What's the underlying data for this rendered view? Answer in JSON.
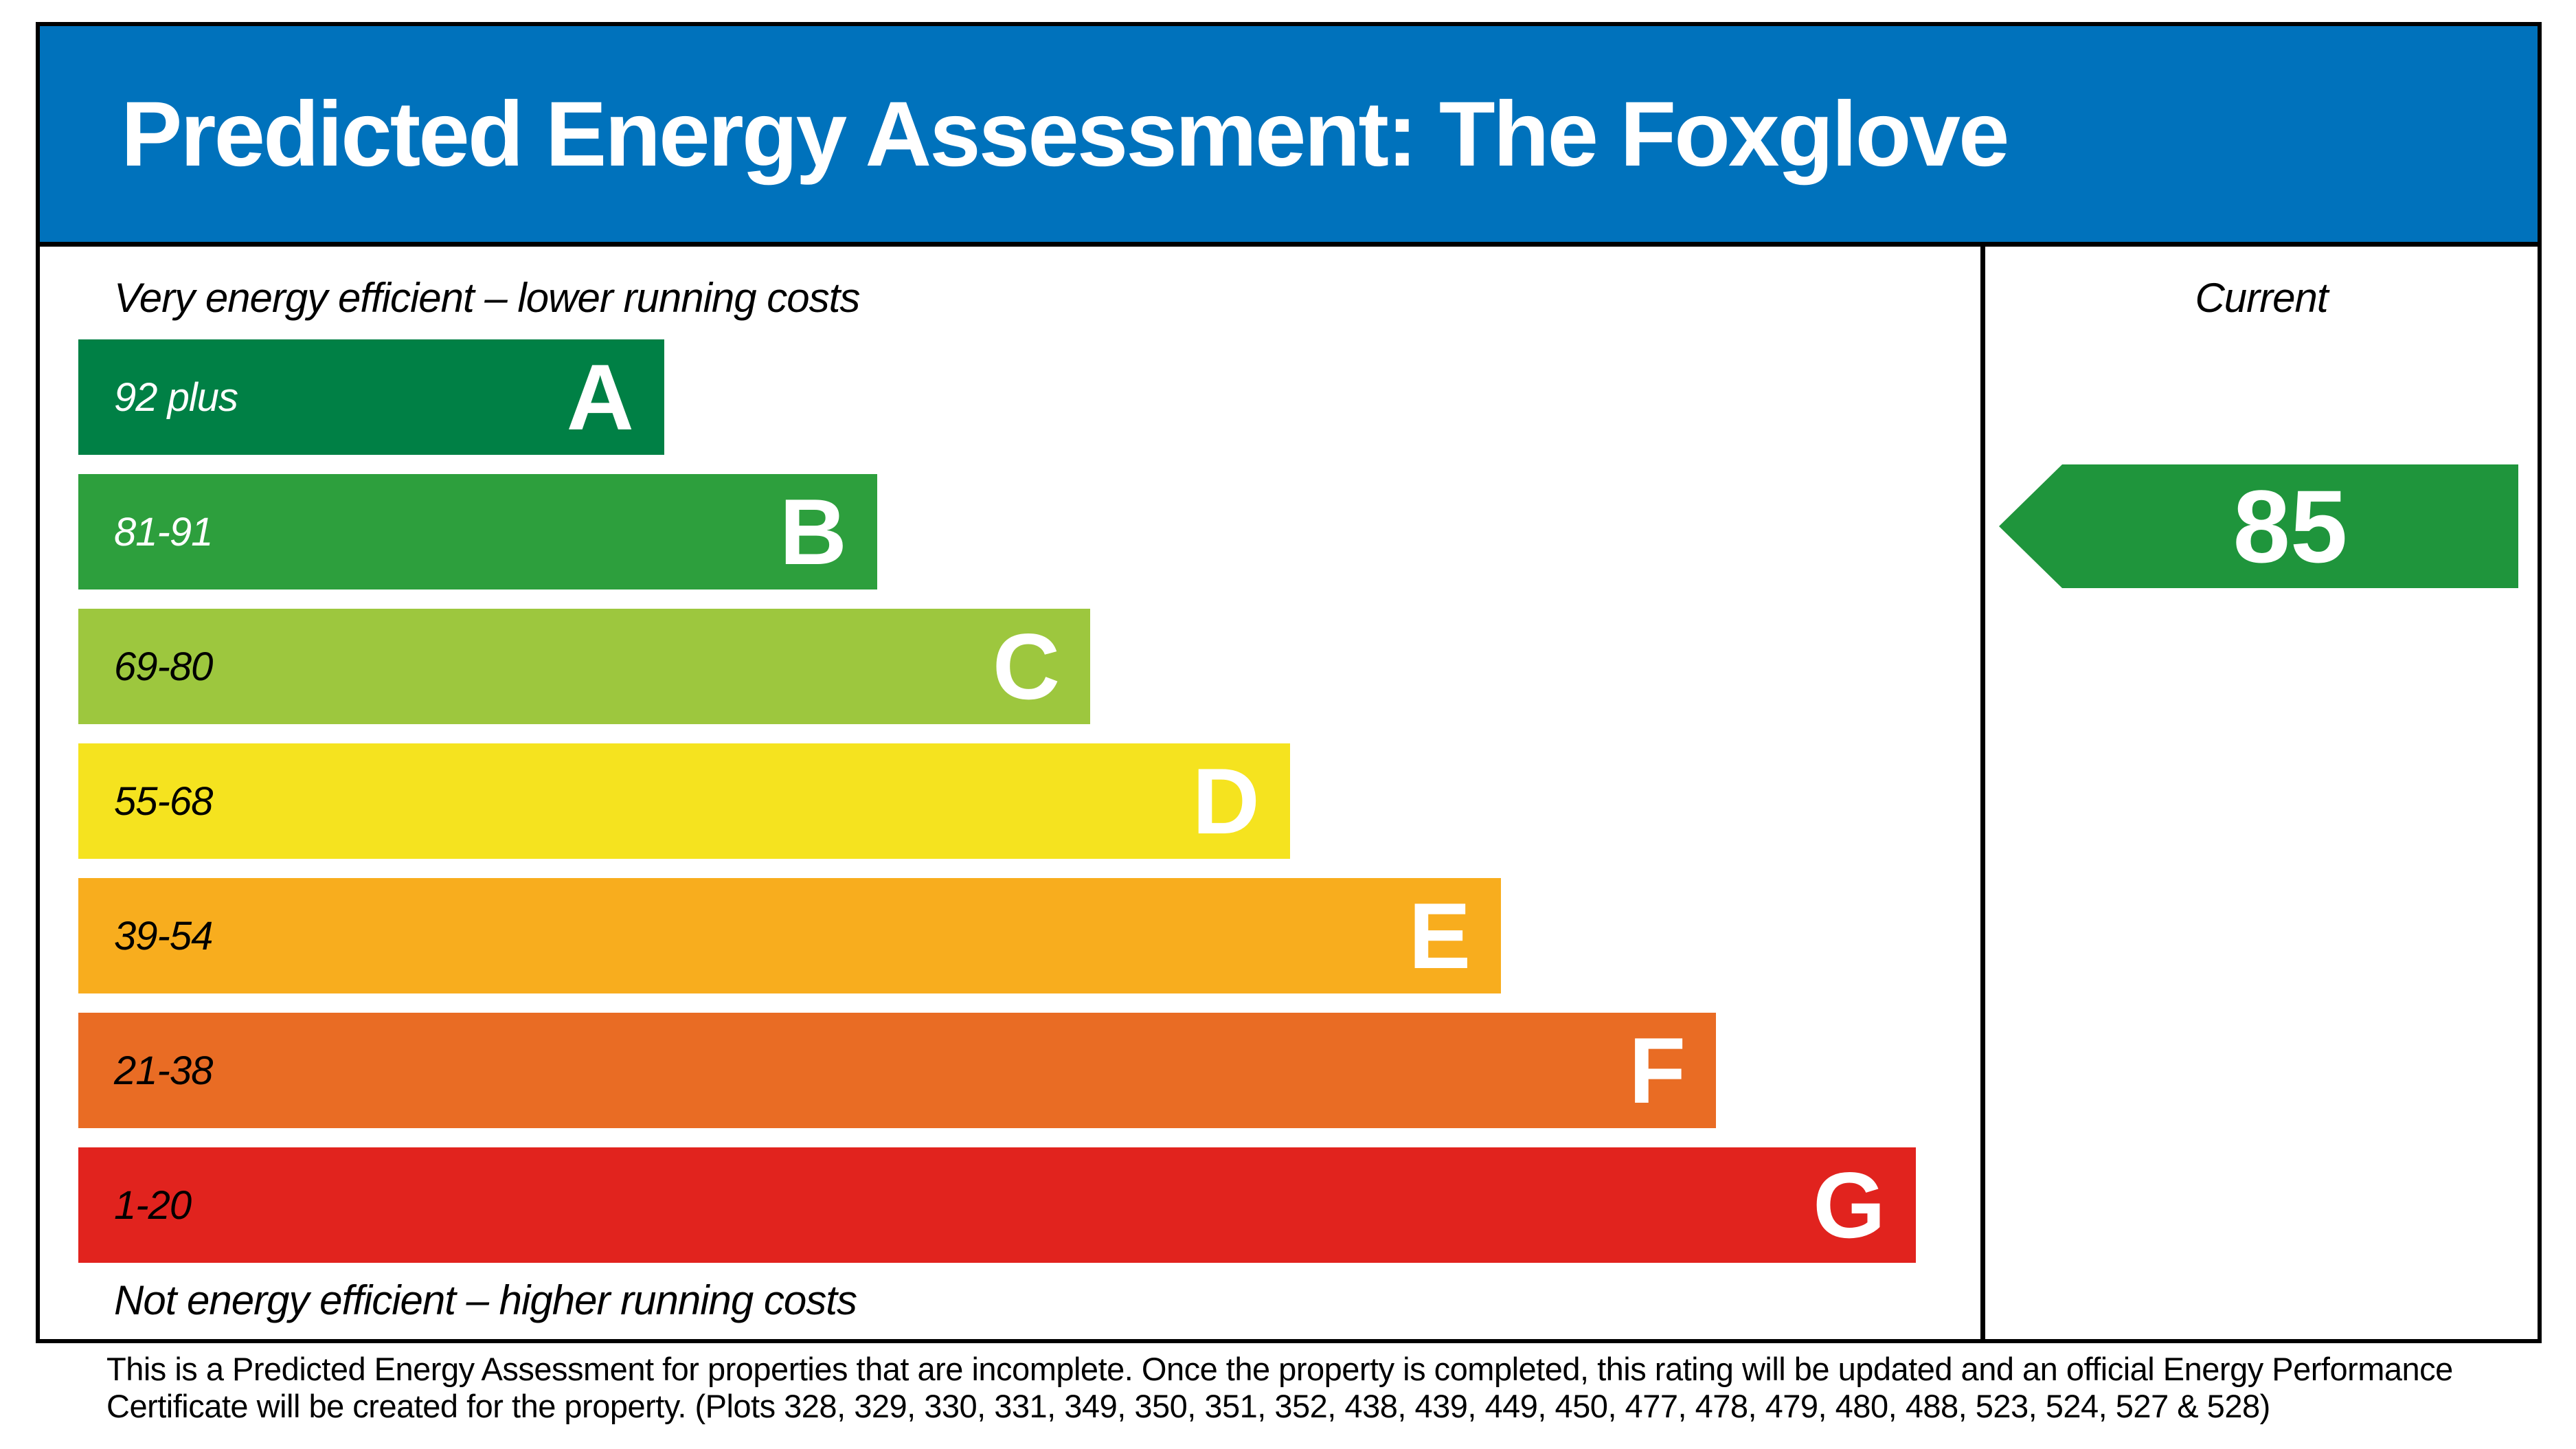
{
  "header": {
    "title": "Predicted Energy Assessment: The Foxglove",
    "bg_color": "#0072bc"
  },
  "chart_data": {
    "type": "bar",
    "title": "Predicted Energy Assessment: The Foxglove",
    "top_caption": "Very energy efficient – lower running costs",
    "bottom_caption": "Not energy efficient – higher running costs",
    "grade_letter_color": "#ffffff",
    "bands": [
      {
        "grade": "A",
        "label": "92 plus",
        "color": "#008045",
        "label_color": "#ffffff",
        "width_pct": 30.8
      },
      {
        "grade": "B",
        "label": "81-91",
        "color": "#2d9f3d",
        "label_color": "#ffffff",
        "width_pct": 42.0
      },
      {
        "grade": "C",
        "label": "69-80",
        "color": "#9dc73e",
        "label_color": "#000000",
        "width_pct": 53.2
      },
      {
        "grade": "D",
        "label": "55-68",
        "color": "#f5e31f",
        "label_color": "#000000",
        "width_pct": 63.7
      },
      {
        "grade": "E",
        "label": "39-54",
        "color": "#f8ad1e",
        "label_color": "#000000",
        "width_pct": 74.8
      },
      {
        "grade": "F",
        "label": "21-38",
        "color": "#e96c24",
        "label_color": "#000000",
        "width_pct": 86.1
      },
      {
        "grade": "G",
        "label": "1-20",
        "color": "#e1231e",
        "label_color": "#000000",
        "width_pct": 96.6
      }
    ],
    "current": {
      "column_label": "Current",
      "value": "85",
      "band": "B",
      "color": "#1f953c"
    }
  },
  "footnote": {
    "lines": [
      "This is a Predicted Energy Assessment for properties that are incomplete. Once the property is completed, this rating will be updated and an official Energy Performance",
      "Certificate will be created for the property. (Plots 328, 329, 330, 331, 349, 350, 351, 352, 438, 439, 449, 450, 477, 478, 479, 480, 488, 523, 524, 527 & 528)"
    ]
  }
}
